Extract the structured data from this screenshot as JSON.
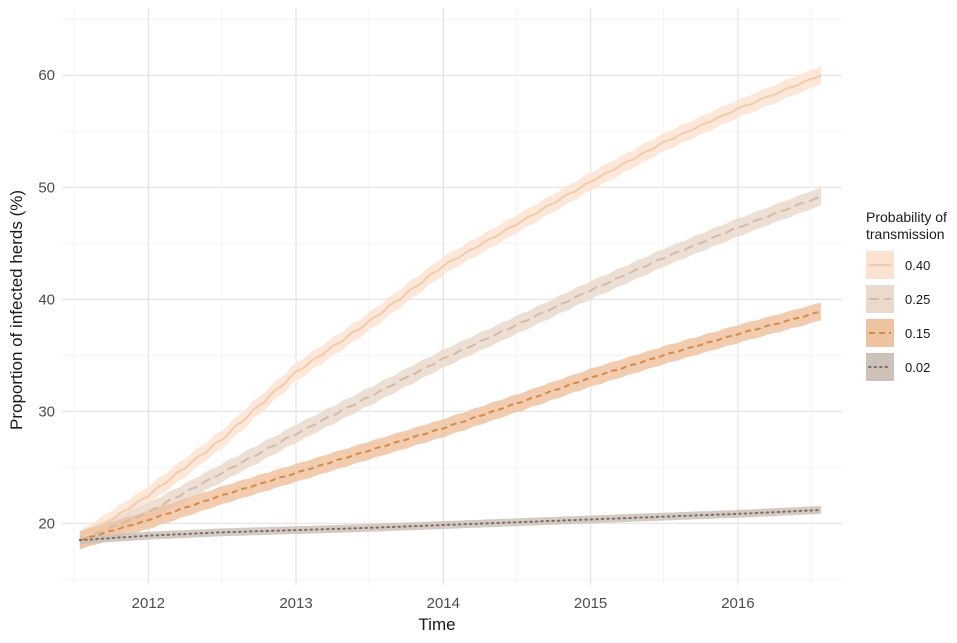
{
  "chart_data": {
    "type": "line",
    "xlabel": "Time",
    "ylabel": "Proportion of infected herds (%)",
    "x_ticks": [
      "2012",
      "2013",
      "2014",
      "2015",
      "2016"
    ],
    "y_ticks": [
      "20",
      "30",
      "40",
      "50",
      "60"
    ],
    "xlim": [
      "2011-06-01",
      "2016-09-15"
    ],
    "ylim": [
      14.5,
      66
    ],
    "grid": true,
    "legend": {
      "title": "Probability of transmission",
      "title_lines": [
        "Probability of",
        "transmission"
      ],
      "position": "right"
    },
    "x": [
      "2011-07-15",
      "2012-01-01",
      "2012-07-01",
      "2013-01-01",
      "2013-07-01",
      "2014-01-01",
      "2014-07-01",
      "2015-01-01",
      "2015-07-01",
      "2016-01-01",
      "2016-07-25"
    ],
    "series": [
      {
        "name": "0.40",
        "values": [
          18.5,
          22.5,
          27.5,
          33.5,
          38.0,
          43.0,
          46.7,
          50.5,
          54.0,
          57.0,
          60.0
        ],
        "band_halfwidth": 0.8,
        "line_color": "#f2cbab",
        "band_color": "#fbe3d2",
        "dash": "solid"
      },
      {
        "name": "0.25",
        "values": [
          18.5,
          21.0,
          24.5,
          28.0,
          31.3,
          34.7,
          37.7,
          40.8,
          43.7,
          46.4,
          49.2
        ],
        "band_halfwidth": 0.8,
        "line_color": "#d3bba8",
        "band_color": "#ead9cc",
        "dash": "long-dash"
      },
      {
        "name": "0.15",
        "values": [
          18.5,
          20.3,
          22.5,
          24.5,
          26.5,
          28.5,
          30.7,
          33.0,
          35.0,
          36.9,
          38.9
        ],
        "band_halfwidth": 0.8,
        "line_color": "#d98a48",
        "band_color": "#eec3a0",
        "dash": "dashed"
      },
      {
        "name": "0.02",
        "values": [
          18.5,
          18.9,
          19.2,
          19.4,
          19.6,
          19.85,
          20.1,
          20.35,
          20.6,
          20.85,
          21.2
        ],
        "band_halfwidth": 0.35,
        "line_color": "#7a6f68",
        "band_color": "#cdc1b8",
        "dash": "dotted"
      }
    ]
  }
}
